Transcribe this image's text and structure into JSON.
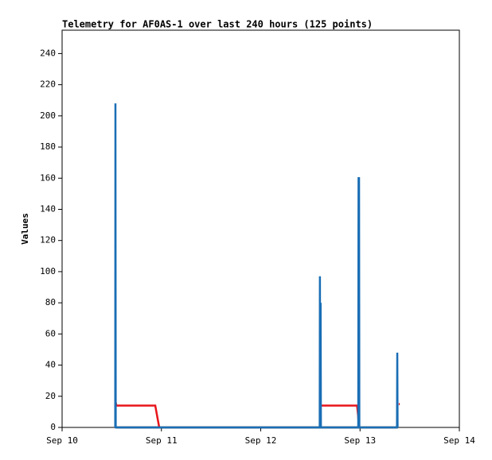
{
  "chart_data": {
    "type": "line",
    "title": "Telemetry for AF0AS-1 over last 240 hours (125 points)",
    "y_label": "Values",
    "xlim": [
      0,
      4
    ],
    "xticks": [
      {
        "value": 0,
        "label": "Sep 10"
      },
      {
        "value": 1,
        "label": "Sep 11"
      },
      {
        "value": 2,
        "label": "Sep 12"
      },
      {
        "value": 3,
        "label": "Sep 13"
      },
      {
        "value": 4,
        "label": "Sep 14"
      }
    ],
    "ylim": [
      0,
      255
    ],
    "yticks": [
      0,
      20,
      40,
      60,
      80,
      100,
      120,
      140,
      160,
      180,
      200,
      220,
      240
    ],
    "series": [
      {
        "color": "#000000",
        "x": [
          0.54,
          3.38
        ],
        "values": [
          0,
          0
        ]
      },
      {
        "color": "#e8141a",
        "x": [
          0.541,
          0.546,
          0.938,
          0.978,
          1.5,
          2.605,
          2.97,
          2.98,
          2.99,
          3.2,
          3.39,
          3.4
        ],
        "values": [
          16,
          14,
          14,
          0,
          null,
          14,
          14,
          8,
          0,
          null,
          15,
          15
        ]
      },
      {
        "color": "#1a6eb5",
        "x": [
          0.535,
          0.537,
          0.54,
          2.594,
          2.596,
          2.6,
          2.603,
          2.606,
          2.982,
          2.985,
          2.99,
          2.993,
          3.372,
          3.375,
          3.378
        ],
        "values": [
          0,
          208,
          0,
          0,
          97,
          0,
          80,
          0,
          0,
          160,
          160,
          0,
          0,
          48,
          0
        ]
      }
    ]
  }
}
